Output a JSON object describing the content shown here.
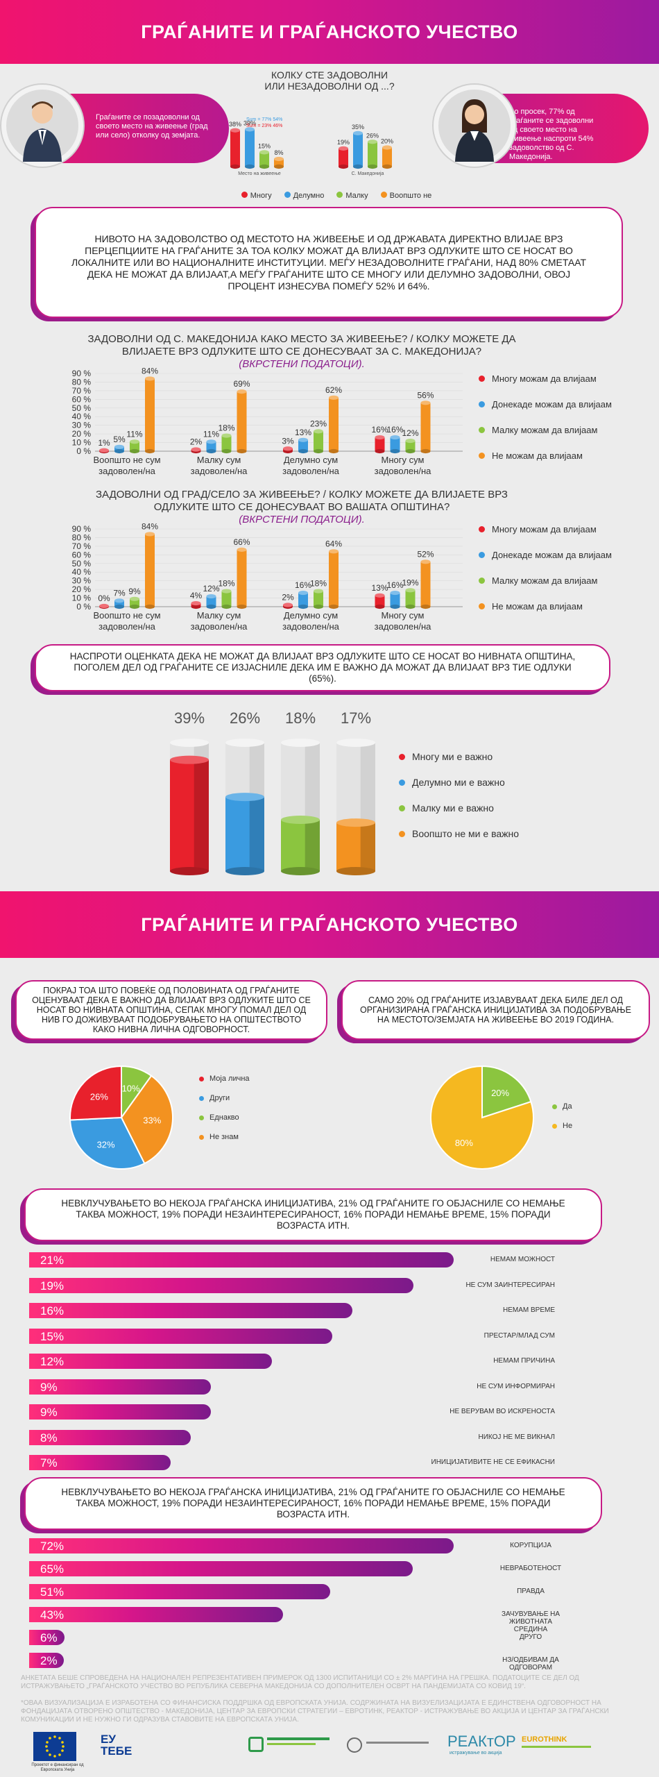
{
  "title": "ГРАЃАНИТЕ И ГРАЃАНСКОТО УЧЕСТВО",
  "colors": {
    "red": "#e8212c",
    "blue": "#3a9be0",
    "green": "#8bc53f",
    "orange": "#f39220",
    "magenta": "#d6168a",
    "purple": "#8a1e8c"
  },
  "top": {
    "question": [
      "КОЛКУ СТЕ ЗАДОВОЛНИ",
      "ИЛИ НЕЗАДОВОЛНИ ОД ...?"
    ],
    "left_text": "Граѓаните се позадоволни од своето место на живеење (град или село) отколку од земјата.",
    "right_text": "Во просек, 77% од граѓаните се задоволни од своето место на живеење наспроти 54% задоволство од С. Македонија.",
    "sum1": "Sum = 77% 54%",
    "sum2": "Sum = 23% 46%",
    "group_labels": [
      "Место на живеење",
      "С. Македонија"
    ],
    "legend": [
      "Многу",
      "Делумно",
      "Малку",
      "Воопшто не"
    ]
  },
  "statement1": "НИВОТО НА ЗАДОВОЛСТВО ОД МЕСТОТО НА ЖИВЕЕЊЕ И ОД ДРЖАВАТА ДИРЕКТНО ВЛИЈАЕ ВРЗ ПЕРЦЕПЦИИТЕ НА ГРАЃАНИТЕ ЗА ТОА КОЛКУ МОЖАТ ДА ВЛИЈААТ ВРЗ ОДЛУКИТЕ ШТО СЕ НОСАТ ВО ЛОКАЛНИТЕ ИЛИ ВО НАЦИОНАЛНИТЕ ИНСТИТУЦИИ. МЕЃУ НЕЗАДОВОЛНИТЕ ГРАЃАНИ, НАД 80% СМЕТААТ ДЕКА НЕ МОЖАТ ДА ВЛИЈААТ,А МЕЃУ ГРАЃАНИТЕ ШТО СЕ МНОГУ ИЛИ ДЕЛУМНО ЗАДОВОЛНИ, ОВОЈ ПРОЦЕНТ ИЗНЕСУВА ПОМЕЃУ 52% И 64%.",
  "chart2": {
    "title": "ЗАДОВОЛНИ ОД С. МАКЕДОНИЈА КАКО МЕСТО ЗА ЖИВЕЕЊЕ? / КОЛКУ МОЖЕТЕ ДА ВЛИЈАЕТЕ ВРЗ ОДЛУКИТЕ ШТО СЕ ДОНЕСУВААТ ЗА С. МАКЕДОНИЈА?",
    "subtitle": "(ВКРСТЕНИ ПОДАТОЦИ)."
  },
  "chart3": {
    "title": "ЗАДОВОЛНИ ОД ГРАД/СЕЛО ЗА ЖИВЕЕЊЕ? / КОЛКУ МОЖЕТЕ ДА ВЛИЈАЕТЕ ВРЗ ОДЛУКИТЕ ШТО СЕ ДОНЕСУВААТ ВО ВАШАТА ОПШТИНА?",
    "subtitle": "(ВКРСТЕНИ ПОДАТОЦИ)."
  },
  "statement2": "НАСПРОТИ ОЦЕНКАТА ДЕКА НЕ МОЖАТ ДА ВЛИЈААТ ВРЗ ОДЛУКИТЕ ШТО СЕ НОСАТ ВО НИВНАТА ОПШТИНА, ПОГОЛЕМ ДЕЛ ОД ГРАЃАНИТЕ СЕ ИЗЈАСНИЛЕ ДЕКА ИМ Е ВАЖНО ДА МОЖАТ ДА ВЛИЈААТ ВРЗ ТИЕ ОДЛУКИ (65%).",
  "title2": "ГРАЃАНИТЕ И ГРАЃАНСКОТО УЧЕСТВО",
  "box_left": "ПОКРАЈ ТОА ШТО ПОВЕЌЕ ОД ПОЛОВИНАТА ОД ГРАЃАНИТЕ ОЦЕНУВААТ ДЕКА Е ВАЖНО ДА ВЛИЈААТ ВРЗ ОДЛУКИТЕ ШТО СЕ НОСАТ ВО НИВНАТА ОПШТИНА, СЕПАК МНОГУ ПОМАЛ ДЕЛ ОД НИВ ГО ДОЖИВУВААТ ПОДОБРУВАЊЕТО НА ОПШТЕСТВОТО КАКО НИВНА ЛИЧНА ОДГОВОРНОСТ.",
  "box_right": "САМО 20% ОД ГРАЃАНИТЕ ИЗЈАВУВААТ ДЕКА БИЛЕ ДЕЛ ОД ОРГАНИЗИРАНА ГРАЃАНСКА ИНИЦИЈАТИВА ЗА ПОДОБРУВАЊЕ НА МЕСТОТО/ЗЕМЈАТА НА ЖИВЕЕЊЕ ВО 2019 ГОДИНА.",
  "statement3": "НЕВКЛУЧУВАЊЕТО ВО НЕКОЈА ГРАЃАНСКА ИНИЦИЈАТИВА, 21% ОД ГРАЃАНИТЕ ГО ОБЈАСНИЛЕ СО НЕМАЊЕ ТАКВА МОЖНОСТ, 19% ПОРАДИ НЕЗАИНТЕРЕСИРАНОСТ, 16% ПОРАДИ НЕМАЊЕ ВРЕМЕ, 15% ПОРАДИ ВОЗРАСТА ИТН.",
  "statement4": "НЕВКЛУЧУВАЊЕТО ВО НЕКОЈА ГРАЃАНСКА ИНИЦИЈАТИВА, 21% ОД ГРАЃАНИТЕ ГО ОБЈАСНИЛЕ СО НЕМАЊЕ ТАКВА МОЖНОСТ, 19% ПОРАДИ НЕЗАИНТЕРЕСИРАНОСТ, 16% ПОРАДИ НЕМАЊЕ ВРЕМЕ, 15% ПОРАДИ ВОЗРАСТА ИТН.",
  "footnote1": "АНКЕТАТА БЕШЕ СПРОВЕДЕНА НА НАЦИОНАЛЕН РЕПРЕЗЕНТАТИВЕН ПРИМЕРОК ОД 1300 ИСПИТАНИЦИ СО ± 2% МАРГИНА НА ГРЕШКА. ПОДАТОЦИТЕ СЕ ДЕЛ ОД ИСТРАЖУВАЊЕТО „ГРАЃАНСКОТО УЧЕСТВО ВО РЕПУБЛИКА СЕВЕРНА МАКЕДОНИЈА СО ДОПОЛНИТЕЛЕН ОСВРТ НА ПАНДЕМИЈАТА СО КОВИД 19“.",
  "footnote2": "*ОВАА ВИЗУАЛИЗАЦИЈА Е ИЗРАБОТЕНА СО ФИНАНСИСКА ПОДДРШКА ОД ЕВРОПСКАТА УНИЈА. СОДРЖИНАТА НА ВИЗУЕЛИЗАЦИЈАТА Е ЕДИНСТВЕНА ОДГОВОРНОСТ НА ФОНДАЦИЈАТА ОТВОРЕНО ОПШТЕСТВО - МАКЕДОНИЈА, ЦЕНТАР ЗА ЕВРОПСКИ СТРАТЕГИИ – ЕВРОТИНК, РЕАКТОР - ИСТРАЖУВАЊЕ ВО АКЦИЈА И ЦЕНТАР ЗА ГРАЃАНСКИ КОМУНИКАЦИИ И НЕ НУЖНО ГИ ОДРАЗУВА СТАВОВИТЕ НА ЕВРОПСКАТА УНИЈА.",
  "logos": {
    "eu_caption": "Проектот е финансиран од Европската Унија",
    "eu_tebe": "EУ ТЕБЕ",
    "reaktor": "РЕАКтОР",
    "reaktor_sub": "истражување во акција",
    "eurothink": "EUROTHINK"
  },
  "chart_data": [
    {
      "type": "bar",
      "id": "satisfaction",
      "categories": [
        "Место на живеење",
        "С. Македонија"
      ],
      "series": [
        {
          "name": "Многу",
          "values": [
            38,
            19
          ]
        },
        {
          "name": "Делумно",
          "values": [
            39,
            35
          ]
        },
        {
          "name": "Малку",
          "values": [
            15,
            26
          ]
        },
        {
          "name": "Воопшто не",
          "values": [
            8,
            20
          ]
        }
      ],
      "value_suffix": "%"
    },
    {
      "type": "bar",
      "id": "influence_country",
      "categories": [
        "Воопшто не сум задоволен/на",
        "Малку сум задоволен/на",
        "Делумно сум задоволен/на",
        "Многу сум задоволен/на"
      ],
      "series": [
        {
          "name": "Многу можам да влијаам",
          "values": [
            1,
            2,
            3,
            16
          ]
        },
        {
          "name": "Донекаде можам да влијаам",
          "values": [
            5,
            11,
            13,
            16
          ]
        },
        {
          "name": "Малку можам да влијаам",
          "values": [
            11,
            18,
            23,
            12
          ]
        },
        {
          "name": "Не можам да влијаам",
          "values": [
            84,
            69,
            62,
            56
          ]
        }
      ],
      "yticks": [
        "0 %",
        "10 %",
        "20 %",
        "30 %",
        "40 %",
        "50 %",
        "60 %",
        "70 %",
        "80 %",
        "90 %"
      ],
      "ylim": [
        0,
        90
      ],
      "value_suffix": "%"
    },
    {
      "type": "bar",
      "id": "influence_municipality",
      "categories": [
        "Воопшто не сум задоволен/на",
        "Малку сум задоволен/на",
        "Делумно сум задоволен/на",
        "Многу сум задоволен/на"
      ],
      "series": [
        {
          "name": "Многу можам да влијаам",
          "values": [
            0,
            4,
            2,
            13
          ]
        },
        {
          "name": "Донекаде можам да влијаам",
          "values": [
            7,
            12,
            16,
            16
          ]
        },
        {
          "name": "Малку можам да влијаам",
          "values": [
            9,
            18,
            18,
            19
          ]
        },
        {
          "name": "Не можам да влијаам",
          "values": [
            84,
            66,
            64,
            52
          ]
        }
      ],
      "yticks": [
        "0 %",
        "10 %",
        "20 %",
        "30 %",
        "40 %",
        "50 %",
        "60 %",
        "70 %",
        "80 %",
        "90 %"
      ],
      "ylim": [
        0,
        90
      ],
      "value_suffix": "%"
    },
    {
      "type": "bar",
      "id": "importance",
      "categories": [
        "Многу ми е важно",
        "Делумно ми е важно",
        "Малку ми е важно",
        "Воопшто не ми е важно"
      ],
      "values": [
        39,
        26,
        18,
        17
      ],
      "value_suffix": "%"
    },
    {
      "type": "pie",
      "id": "responsibility",
      "labels": [
        "Моја лична",
        "Други",
        "Еднакво",
        "Не знам"
      ],
      "values": [
        26,
        32,
        10,
        33
      ],
      "value_suffix": "%"
    },
    {
      "type": "pie",
      "id": "participation",
      "labels": [
        "Да",
        "Не"
      ],
      "values": [
        20,
        80
      ],
      "value_suffix": "%"
    },
    {
      "type": "bar",
      "id": "reasons_non_participation",
      "categories": [
        "НЕМАМ МОЖНОСТ",
        "НЕ СУМ ЗАИНТЕРЕСИРАН",
        "НЕМАМ ВРЕМЕ",
        "ПРЕСТАР/МЛАД СУМ",
        "НЕМАМ ПРИЧИНА",
        "НЕ СУМ ИНФОРМИРАН",
        "НЕ ВЕРУВАМ ВО ИСКРЕНОСТА",
        "НИКОЈ НЕ МЕ ВИКНАЛ",
        "ИНИЦИЈАТИВИТЕ НЕ СЕ ЕФИКАСНИ"
      ],
      "values": [
        21,
        19,
        16,
        15,
        12,
        9,
        9,
        8,
        7
      ],
      "value_suffix": "%"
    },
    {
      "type": "bar",
      "id": "problems",
      "categories": [
        "КОРУПЦИЈА",
        "НЕВРАБОТЕНОСТ",
        "ПРАВДА",
        "ЗАЧУВУВАЊЕ НА ЖИВОТНАТА СРЕДИНА",
        "ДРУГО",
        "НЗ/ОДБИВАМ ДА ОДГОВОРАМ"
      ],
      "values": [
        72,
        65,
        51,
        43,
        6,
        2
      ],
      "value_suffix": "%"
    }
  ]
}
